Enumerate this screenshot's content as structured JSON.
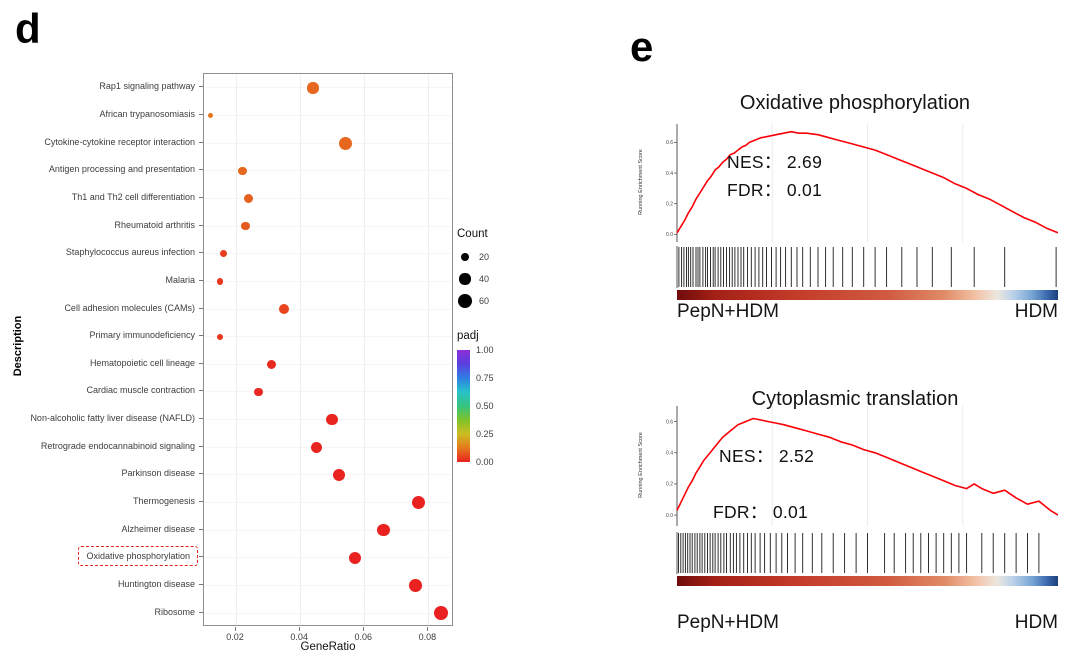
{
  "figure": {
    "panel_d_label": "d",
    "panel_e_label": "e"
  },
  "colors": {
    "highlight_box": "#e8231f",
    "gsea_curve": "#fb0007",
    "padj_colormap": [
      {
        "t": 0.0,
        "c": "#e92120"
      },
      {
        "t": 0.125,
        "c": "#e5791d"
      },
      {
        "t": 0.25,
        "c": "#cdbd22"
      },
      {
        "t": 0.375,
        "c": "#7fc32a"
      },
      {
        "t": 0.5,
        "c": "#35c37f"
      },
      {
        "t": 0.625,
        "c": "#27c3c9"
      },
      {
        "t": 0.75,
        "c": "#2f7fe3"
      },
      {
        "t": 0.875,
        "c": "#5a3fe0"
      },
      {
        "t": 1.0,
        "c": "#8b2fd6"
      }
    ],
    "rank_gradient": [
      {
        "p": 0,
        "c": "#700c0c"
      },
      {
        "p": 10,
        "c": "#a32015"
      },
      {
        "p": 30,
        "c": "#c23a28"
      },
      {
        "p": 55,
        "c": "#d05a40"
      },
      {
        "p": 70,
        "c": "#e08a66"
      },
      {
        "p": 78,
        "c": "#f2bfa2"
      },
      {
        "p": 84,
        "c": "#ece6de"
      },
      {
        "p": 88,
        "c": "#bdd3ea"
      },
      {
        "p": 93,
        "c": "#7aa7d6"
      },
      {
        "p": 97,
        "c": "#3c6cb0"
      },
      {
        "p": 100,
        "c": "#1d3f7d"
      }
    ]
  },
  "chart_data": [
    {
      "type": "scatter",
      "name": "kegg-enrichment-dotplot",
      "xlabel": "GeneRatio",
      "ylabel": "Description",
      "xlim": [
        0.01,
        0.088
      ],
      "xticks": [
        0.02,
        0.04,
        0.06,
        0.08
      ],
      "xtick_labels": [
        "0.02",
        "0.04",
        "0.06",
        "0.08"
      ],
      "legend": {
        "count_title": "Count",
        "count_sizes": [
          20,
          40,
          60
        ],
        "padj_title": "padj",
        "padj_ticks": [
          "1.00",
          "0.75",
          "0.50",
          "0.25",
          "0.00"
        ],
        "padj_range": [
          0,
          1
        ]
      },
      "points": [
        {
          "label": "Rap1 signaling pathway",
          "gene_ratio": 0.044,
          "count": 40,
          "padj": 0.1,
          "highlight": false
        },
        {
          "label": "African trypanosomiasis",
          "gene_ratio": 0.012,
          "count": 8,
          "padj": 0.12,
          "highlight": false
        },
        {
          "label": "Cytokine-cytokine receptor interaction",
          "gene_ratio": 0.054,
          "count": 52,
          "padj": 0.1,
          "highlight": false
        },
        {
          "label": "Antigen processing and presentation",
          "gene_ratio": 0.022,
          "count": 22,
          "padj": 0.1,
          "highlight": false
        },
        {
          "label": "Th1 and Th2 cell differentiation",
          "gene_ratio": 0.024,
          "count": 26,
          "padj": 0.09,
          "highlight": false
        },
        {
          "label": "Rheumatoid arthritis",
          "gene_ratio": 0.023,
          "count": 24,
          "padj": 0.08,
          "highlight": false
        },
        {
          "label": "Staphylococcus aureus infection",
          "gene_ratio": 0.016,
          "count": 16,
          "padj": 0.04,
          "highlight": false
        },
        {
          "label": "Malaria",
          "gene_ratio": 0.015,
          "count": 14,
          "padj": 0.03,
          "highlight": false
        },
        {
          "label": "Cell adhesion molecules (CAMs)",
          "gene_ratio": 0.035,
          "count": 30,
          "padj": 0.05,
          "highlight": false
        },
        {
          "label": "Primary immunodeficiency",
          "gene_ratio": 0.015,
          "count": 12,
          "padj": 0.03,
          "highlight": false
        },
        {
          "label": "Hematopoietic cell lineage",
          "gene_ratio": 0.031,
          "count": 26,
          "padj": 0.01,
          "highlight": false
        },
        {
          "label": "Cardiac muscle contraction",
          "gene_ratio": 0.027,
          "count": 24,
          "padj": 0.01,
          "highlight": false
        },
        {
          "label": "Non-alcoholic fatty liver disease (NAFLD)",
          "gene_ratio": 0.05,
          "count": 42,
          "padj": 0.005,
          "highlight": false
        },
        {
          "label": "Retrograde endocannabinoid signaling",
          "gene_ratio": 0.045,
          "count": 38,
          "padj": 0.005,
          "highlight": false
        },
        {
          "label": "Parkinson disease",
          "gene_ratio": 0.052,
          "count": 44,
          "padj": 0.003,
          "highlight": false
        },
        {
          "label": "Thermogenesis",
          "gene_ratio": 0.077,
          "count": 56,
          "padj": 0.002,
          "highlight": false
        },
        {
          "label": "Alzheimer disease",
          "gene_ratio": 0.066,
          "count": 48,
          "padj": 0.002,
          "highlight": false
        },
        {
          "label": "Oxidative phosphorylation",
          "gene_ratio": 0.057,
          "count": 46,
          "padj": 0.001,
          "highlight": true
        },
        {
          "label": "Huntington disease",
          "gene_ratio": 0.076,
          "count": 50,
          "padj": 0.001,
          "highlight": false
        },
        {
          "label": "Ribosome",
          "gene_ratio": 0.084,
          "count": 60,
          "padj": 0.0005,
          "highlight": false
        }
      ]
    },
    {
      "type": "line",
      "name": "gsea-oxidative-phosphorylation",
      "title": "Oxidative phosphorylation",
      "ylabel": "Running Enrichment Score",
      "nes": "NES： 2.69",
      "fdr": "FDR： 0.01",
      "left_label": "PepN+HDM",
      "right_label": "HDM",
      "yticks": [
        "0.6",
        "0.4",
        "0.2",
        "0.0"
      ],
      "score_range": [
        -0.05,
        0.72
      ],
      "curve": {
        "x": [
          0.0,
          0.01,
          0.02,
          0.03,
          0.04,
          0.05,
          0.06,
          0.07,
          0.08,
          0.09,
          0.1,
          0.11,
          0.12,
          0.13,
          0.14,
          0.15,
          0.16,
          0.17,
          0.18,
          0.19,
          0.2,
          0.22,
          0.24,
          0.26,
          0.28,
          0.3,
          0.32,
          0.34,
          0.37,
          0.4,
          0.43,
          0.46,
          0.49,
          0.52,
          0.55,
          0.58,
          0.61,
          0.64,
          0.67,
          0.7,
          0.73,
          0.76,
          0.79,
          0.82,
          0.85,
          0.88,
          0.91,
          0.94,
          0.97,
          1.0
        ],
        "y": [
          0.01,
          0.05,
          0.09,
          0.14,
          0.18,
          0.23,
          0.27,
          0.31,
          0.35,
          0.38,
          0.42,
          0.44,
          0.47,
          0.49,
          0.52,
          0.53,
          0.55,
          0.57,
          0.58,
          0.6,
          0.61,
          0.63,
          0.64,
          0.65,
          0.66,
          0.67,
          0.66,
          0.66,
          0.65,
          0.63,
          0.61,
          0.59,
          0.57,
          0.55,
          0.52,
          0.49,
          0.46,
          0.43,
          0.4,
          0.37,
          0.33,
          0.3,
          0.26,
          0.23,
          0.19,
          0.15,
          0.11,
          0.08,
          0.04,
          0.01
        ]
      },
      "hits": [
        0.005,
        0.012,
        0.018,
        0.025,
        0.03,
        0.036,
        0.042,
        0.05,
        0.055,
        0.06,
        0.068,
        0.075,
        0.08,
        0.088,
        0.095,
        0.1,
        0.108,
        0.115,
        0.122,
        0.13,
        0.138,
        0.145,
        0.152,
        0.16,
        0.168,
        0.175,
        0.185,
        0.195,
        0.205,
        0.215,
        0.225,
        0.235,
        0.248,
        0.26,
        0.272,
        0.285,
        0.3,
        0.315,
        0.33,
        0.35,
        0.37,
        0.39,
        0.41,
        0.435,
        0.46,
        0.49,
        0.52,
        0.55,
        0.59,
        0.63,
        0.67,
        0.72,
        0.78,
        0.86,
        0.995
      ]
    },
    {
      "type": "line",
      "name": "gsea-cytoplasmic-translation",
      "title": "Cytoplasmic translation",
      "ylabel": "Running Enrichment Score",
      "nes": "NES： 2.52",
      "fdr": "FDR： 0.01",
      "left_label": "PepN+HDM",
      "right_label": "HDM",
      "yticks": [
        "0.6",
        "0.4",
        "0.2",
        "0.0"
      ],
      "score_range": [
        -0.07,
        0.7
      ],
      "curve": {
        "x": [
          0.0,
          0.01,
          0.02,
          0.03,
          0.04,
          0.05,
          0.06,
          0.07,
          0.08,
          0.09,
          0.1,
          0.11,
          0.12,
          0.13,
          0.14,
          0.15,
          0.16,
          0.18,
          0.2,
          0.22,
          0.24,
          0.26,
          0.28,
          0.31,
          0.34,
          0.37,
          0.4,
          0.43,
          0.46,
          0.49,
          0.52,
          0.55,
          0.58,
          0.61,
          0.64,
          0.67,
          0.7,
          0.73,
          0.76,
          0.78,
          0.8,
          0.83,
          0.86,
          0.89,
          0.92,
          0.95,
          0.98,
          1.0
        ],
        "y": [
          0.03,
          0.08,
          0.13,
          0.18,
          0.22,
          0.27,
          0.31,
          0.35,
          0.38,
          0.41,
          0.44,
          0.47,
          0.5,
          0.52,
          0.54,
          0.56,
          0.58,
          0.6,
          0.62,
          0.61,
          0.6,
          0.59,
          0.58,
          0.56,
          0.54,
          0.52,
          0.5,
          0.47,
          0.45,
          0.42,
          0.4,
          0.37,
          0.34,
          0.31,
          0.28,
          0.25,
          0.22,
          0.19,
          0.17,
          0.2,
          0.17,
          0.14,
          0.16,
          0.11,
          0.07,
          0.09,
          0.03,
          0.0
        ]
      },
      "hits": [
        0.004,
        0.01,
        0.016,
        0.022,
        0.028,
        0.034,
        0.04,
        0.047,
        0.053,
        0.06,
        0.066,
        0.073,
        0.08,
        0.087,
        0.094,
        0.1,
        0.108,
        0.115,
        0.123,
        0.13,
        0.14,
        0.148,
        0.156,
        0.165,
        0.175,
        0.185,
        0.195,
        0.205,
        0.218,
        0.23,
        0.245,
        0.26,
        0.275,
        0.29,
        0.31,
        0.33,
        0.355,
        0.38,
        0.41,
        0.44,
        0.47,
        0.5,
        0.545,
        0.57,
        0.6,
        0.62,
        0.64,
        0.66,
        0.68,
        0.7,
        0.72,
        0.74,
        0.76,
        0.8,
        0.83,
        0.86,
        0.89,
        0.92,
        0.95
      ]
    }
  ]
}
